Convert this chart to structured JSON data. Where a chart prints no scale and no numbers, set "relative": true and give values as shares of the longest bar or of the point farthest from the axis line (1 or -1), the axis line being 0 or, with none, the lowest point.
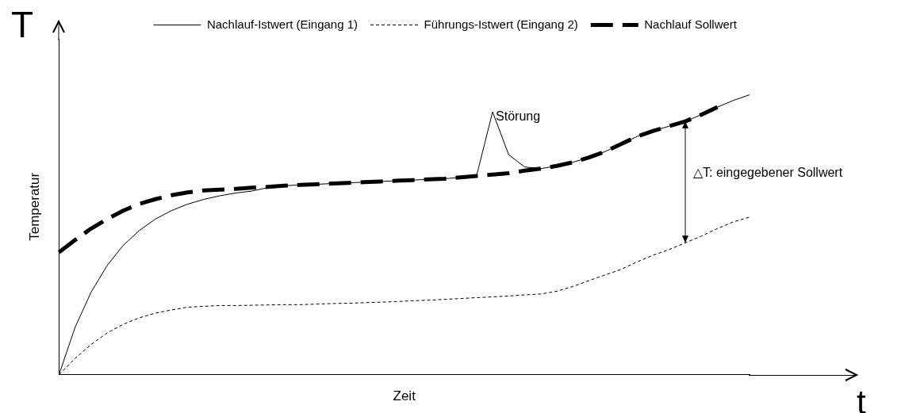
{
  "chart_data": {
    "type": "line",
    "relative": true,
    "xlabel": "Zeit",
    "ylabel": "Temperatur",
    "legend": "top right",
    "marker": "none",
    "tick_labels": false,
    "grid": false,
    "categories": [
      null,
      null,
      null,
      null,
      null,
      null,
      null,
      null,
      null,
      null,
      null,
      null,
      null,
      null,
      null,
      null,
      null,
      null,
      null,
      null,
      null,
      null,
      null,
      null,
      null,
      null,
      null,
      null,
      null,
      null,
      null,
      null,
      null,
      null,
      null,
      null,
      null,
      null,
      null,
      null,
      null,
      null,
      null,
      null
    ],
    "annotations": [
      "T",
      "Störung",
      "△T: eingegebener Sollwert",
      "t"
    ],
    "series": [
      {
        "name": "Nachlauf-Istwert (Eingang 1)",
        "color": "#000000",
        "line_style": "solid",
        "values": [
          0,
          0.169,
          0.295,
          0.39,
          0.462,
          0.515,
          0.556,
          0.586,
          0.609,
          0.626,
          0.639,
          0.649,
          0.656,
          0.668,
          0.675,
          0.678,
          0.68,
          0.683,
          0.685,
          0.688,
          0.69,
          0.693,
          0.695,
          0.698,
          0.7,
          0.705,
          0.71,
          0.939,
          0.786,
          0.742,
          0.736,
          0.746,
          0.759,
          0.776,
          0.797,
          0.824,
          0.851,
          0.871,
          0.888,
          0.905,
          0.929,
          0.956,
          0.98,
          1
        ]
      },
      {
        "name": "Führungs-Istwert (Eingang 2)",
        "color": "#000000",
        "line_style": "dotted",
        "values": [
          0,
          0.058,
          0.108,
          0.149,
          0.18,
          0.203,
          0.22,
          0.231,
          0.241,
          0.244,
          0.247,
          0.247,
          0.248,
          0.249,
          0.25,
          0.25,
          0.252,
          0.254,
          0.255,
          0.257,
          0.259,
          0.261,
          0.264,
          0.266,
          0.269,
          0.272,
          0.275,
          0.278,
          0.281,
          0.285,
          0.288,
          0.298,
          0.315,
          0.336,
          0.356,
          0.376,
          0.403,
          0.427,
          0.447,
          0.471,
          0.495,
          0.522,
          0.546,
          0.563
        ]
      },
      {
        "name": "Nachlauf Sollwert",
        "color": "#000000",
        "line_style": "dashed",
        "values": [
          0.437,
          0.481,
          0.522,
          0.556,
          0.586,
          0.61,
          0.627,
          0.641,
          0.651,
          0.658,
          0.661,
          0.664,
          0.668,
          0.671,
          0.675,
          0.678,
          0.68,
          0.683,
          0.685,
          0.688,
          0.69,
          0.693,
          0.695,
          0.698,
          0.7,
          0.705,
          0.71,
          0.715,
          0.72,
          0.729,
          0.736,
          0.746,
          0.759,
          0.776,
          0.797,
          0.824,
          0.851,
          0.871,
          0.888,
          0.905,
          0.929,
          0.956,
          null,
          null
        ]
      }
    ]
  }
}
